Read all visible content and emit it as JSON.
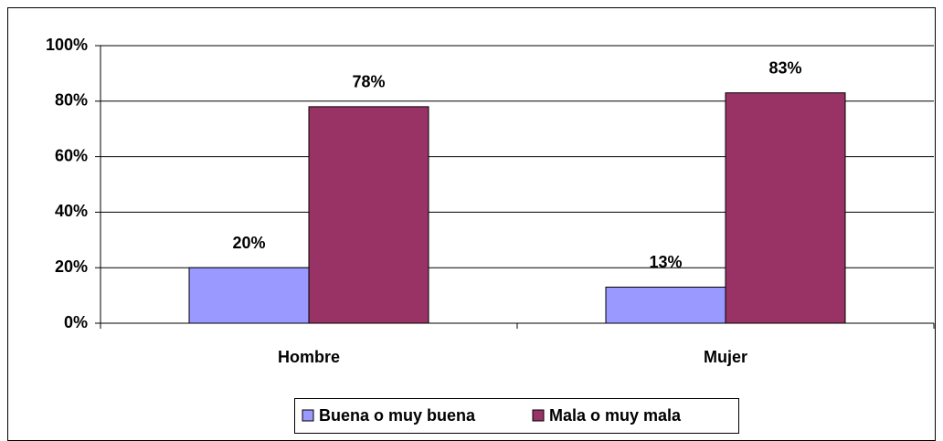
{
  "chart_data": {
    "type": "bar",
    "categories": [
      "Hombre",
      "Mujer"
    ],
    "series": [
      {
        "name": "Buena o muy buena",
        "color": "#9999ff",
        "values": [
          20,
          13
        ],
        "value_labels": [
          "20%",
          "13%"
        ]
      },
      {
        "name": "Mala o muy mala",
        "color": "#993366",
        "values": [
          78,
          83
        ],
        "value_labels": [
          "78%",
          "83%"
        ]
      }
    ],
    "ylim": [
      0,
      100
    ],
    "yticks": [
      {
        "value": 0,
        "label": "0%"
      },
      {
        "value": 20,
        "label": "20%"
      },
      {
        "value": 40,
        "label": "40%"
      },
      {
        "value": 60,
        "label": "60%"
      },
      {
        "value": 80,
        "label": "80%"
      },
      {
        "value": 100,
        "label": "100%"
      }
    ],
    "grid": true,
    "legend": "bottom"
  }
}
